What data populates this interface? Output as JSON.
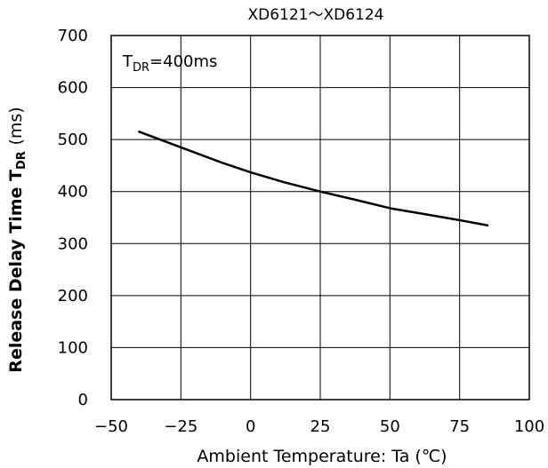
{
  "chart_data": {
    "type": "line",
    "title": "XD6121～XD6124",
    "xlabel": "Ambient Temperature: Ta (℃)",
    "ylabel": "Release Delay Time",
    "ylabel_symbol": "T",
    "ylabel_symbol_sub": "DR",
    "ylabel_unit": "(ms)",
    "xlim": [
      -50,
      100
    ],
    "ylim": [
      0,
      700
    ],
    "x_ticks": [
      -50,
      -25,
      0,
      25,
      50,
      75,
      100
    ],
    "y_ticks": [
      0,
      100,
      200,
      300,
      400,
      500,
      600,
      700
    ],
    "grid": true,
    "annotation": {
      "symbol": "T",
      "sub": "DR",
      "text": "=400ms"
    },
    "series": [
      {
        "x": [
          -40,
          -25,
          -10,
          0,
          12,
          25,
          37,
          50,
          62,
          75,
          85
        ],
        "y": [
          515,
          485,
          455,
          437,
          418,
          400,
          385,
          368,
          357,
          345,
          335
        ]
      }
    ]
  }
}
